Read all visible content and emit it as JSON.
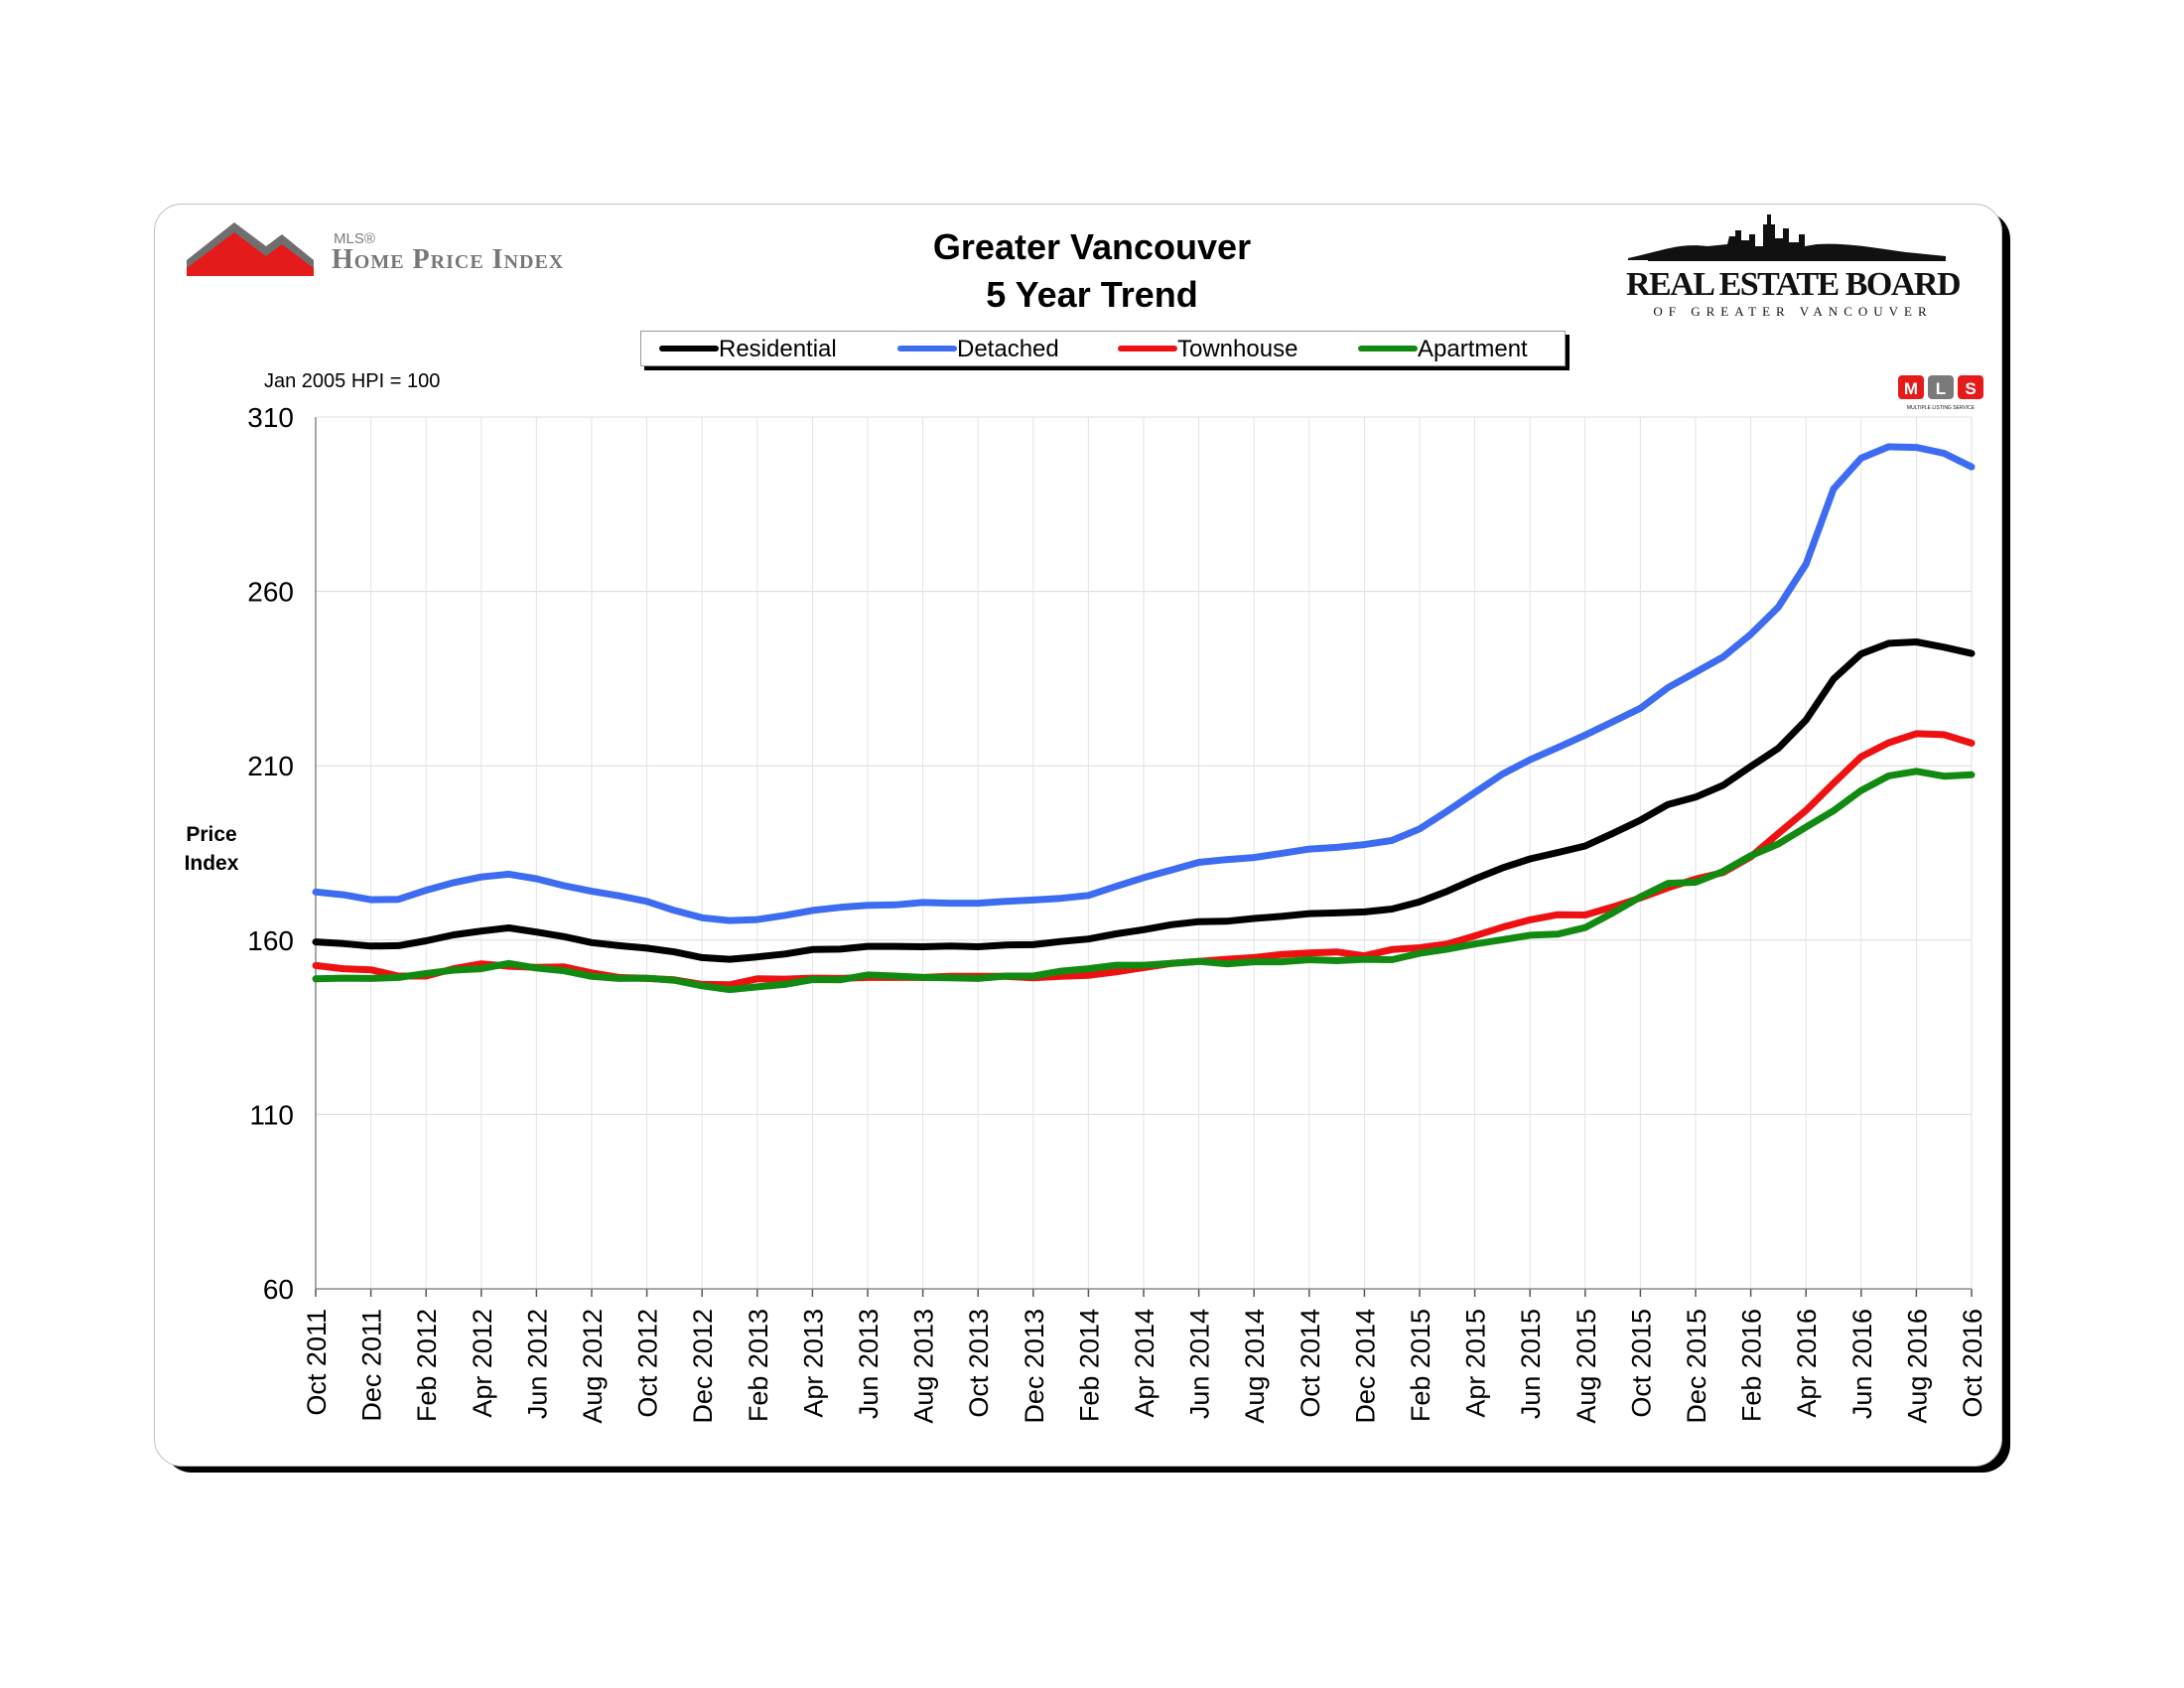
{
  "page": {
    "title_line1": "Greater Vancouver",
    "title_line2": "5 Year Trend",
    "hpi_logo_mls": "MLS®",
    "hpi_logo_text": "Home Price Index",
    "reb_logo_main": "REAL ESTATE BOARD",
    "reb_logo_sub": "OF GREATER VANCOUVER",
    "hpi_note": "Jan 2005 HPI = 100",
    "ylabel": "Price\nIndex",
    "mls_badge": "MLS",
    "mls_badge_sub": "MULTIPLE LISTING SERVICE"
  },
  "chart_data": {
    "type": "line",
    "title": "Greater Vancouver 5 Year Trend",
    "xlabel": "",
    "ylabel": "Price Index",
    "ylim": [
      60,
      310
    ],
    "yticks": [
      60,
      110,
      160,
      210,
      260,
      310
    ],
    "grid": true,
    "legend_position": "top-center",
    "x": [
      "Oct 2011",
      "Nov 2011",
      "Dec 2011",
      "Jan 2012",
      "Feb 2012",
      "Mar 2012",
      "Apr 2012",
      "May 2012",
      "Jun 2012",
      "Jul 2012",
      "Aug 2012",
      "Sep 2012",
      "Oct 2012",
      "Nov 2012",
      "Dec 2012",
      "Jan 2013",
      "Feb 2013",
      "Mar 2013",
      "Apr 2013",
      "May 2013",
      "Jun 2013",
      "Jul 2013",
      "Aug 2013",
      "Sep 2013",
      "Oct 2013",
      "Nov 2013",
      "Dec 2013",
      "Jan 2014",
      "Feb 2014",
      "Mar 2014",
      "Apr 2014",
      "May 2014",
      "Jun 2014",
      "Jul 2014",
      "Aug 2014",
      "Sep 2014",
      "Oct 2014",
      "Nov 2014",
      "Dec 2014",
      "Jan 2015",
      "Feb 2015",
      "Mar 2015",
      "Apr 2015",
      "May 2015",
      "Jun 2015",
      "Jul 2015",
      "Aug 2015",
      "Sep 2015",
      "Oct 2015",
      "Nov 2015",
      "Dec 2015",
      "Jan 2016",
      "Feb 2016",
      "Mar 2016",
      "Apr 2016",
      "May 2016",
      "Jun 2016",
      "Jul 2016",
      "Aug 2016",
      "Sep 2016",
      "Oct 2016"
    ],
    "xtick_labels": [
      "Oct 2011",
      "Dec 2011",
      "Feb 2012",
      "Apr 2012",
      "Jun 2012",
      "Aug 2012",
      "Oct 2012",
      "Dec 2012",
      "Feb 2013",
      "Apr 2013",
      "Jun 2013",
      "Aug 2013",
      "Oct 2013",
      "Dec 2013",
      "Feb 2014",
      "Apr 2014",
      "Jun 2014",
      "Aug 2014",
      "Oct 2014",
      "Dec 2014",
      "Feb 2015",
      "Apr 2015",
      "Jun 2015",
      "Aug 2015",
      "Oct 2015",
      "Dec 2015",
      "Feb 2016",
      "Apr 2016",
      "Jun 2016",
      "Aug 2016",
      "Oct 2016"
    ],
    "series": [
      {
        "name": "Residential",
        "color": "#000000",
        "values": [
          159.5,
          159,
          158.3,
          158.4,
          159.8,
          161.5,
          162.6,
          163.5,
          162.3,
          161,
          159.3,
          158.4,
          157.7,
          156.6,
          155,
          154.5,
          155.2,
          156,
          157.3,
          157.4,
          158.2,
          158.2,
          158.1,
          158.3,
          158.1,
          158.6,
          158.7,
          159.6,
          160.3,
          161.8,
          163,
          164.4,
          165.3,
          165.4,
          166.2,
          166.8,
          167.6,
          167.8,
          168.1,
          168.9,
          171,
          174,
          177.5,
          180.7,
          183.3,
          185.1,
          187,
          190.6,
          194.4,
          198.9,
          201,
          204.4,
          209.8,
          215,
          223.1,
          234.9,
          242.1,
          245.1,
          245.5,
          244,
          242.2
        ]
      },
      {
        "name": "Detached",
        "color": "#3d6cf0",
        "values": [
          173.8,
          173,
          171.6,
          171.7,
          174.3,
          176.5,
          178.1,
          178.9,
          177.6,
          175.6,
          174,
          172.7,
          171.1,
          168.5,
          166.4,
          165.6,
          165.9,
          167.1,
          168.5,
          169.4,
          170,
          170.1,
          170.8,
          170.6,
          170.6,
          171.1,
          171.5,
          172,
          172.8,
          175.4,
          177.9,
          180.1,
          182.3,
          183.1,
          183.7,
          184.9,
          186.1,
          186.6,
          187.4,
          188.6,
          191.9,
          197,
          202.3,
          207.6,
          211.7,
          215.2,
          218.8,
          222.6,
          226.5,
          232.4,
          236.8,
          241.2,
          247.7,
          255.5,
          267.8,
          289.4,
          298.2,
          301.5,
          301.3,
          299.6,
          295.7
        ]
      },
      {
        "name": "Townhouse",
        "color": "#ee1111",
        "values": [
          152.7,
          151.8,
          151.5,
          149.7,
          149.7,
          151.8,
          153.2,
          152.5,
          152.2,
          152.3,
          150.6,
          149.3,
          149,
          148.6,
          147.3,
          147.2,
          148.9,
          148.8,
          149.1,
          149,
          149.3,
          149.3,
          149.3,
          149.6,
          149.6,
          149.6,
          149.2,
          149.6,
          149.9,
          150.9,
          152.1,
          153.3,
          153.9,
          154.5,
          155,
          155.9,
          156.3,
          156.6,
          155.5,
          157.3,
          157.8,
          158.9,
          161.2,
          163.7,
          165.8,
          167.3,
          167.2,
          169.5,
          172.1,
          175,
          177.5,
          179.4,
          183.9,
          190.6,
          197.2,
          205,
          212.6,
          216.6,
          219.2,
          218.9,
          216.5
        ]
      },
      {
        "name": "Apartment",
        "color": "#128a12",
        "values": [
          148.9,
          149.1,
          149,
          149.3,
          150.4,
          151.4,
          151.8,
          153.3,
          152,
          151.2,
          149.6,
          149,
          149.1,
          148.5,
          146.9,
          145.8,
          146.6,
          147.3,
          148.7,
          148.6,
          150,
          149.7,
          149.3,
          149.2,
          149,
          149.7,
          149.7,
          151.1,
          151.8,
          152.8,
          152.8,
          153.3,
          153.9,
          153.2,
          153.8,
          153.8,
          154.4,
          154.1,
          154.5,
          154.4,
          156.2,
          157.4,
          158.9,
          160.1,
          161.4,
          161.7,
          163.6,
          167.8,
          172.4,
          176.3,
          176.6,
          179.7,
          184.2,
          187.6,
          192.4,
          197.1,
          202.9,
          207.1,
          208.4,
          207,
          207.4
        ]
      }
    ]
  }
}
